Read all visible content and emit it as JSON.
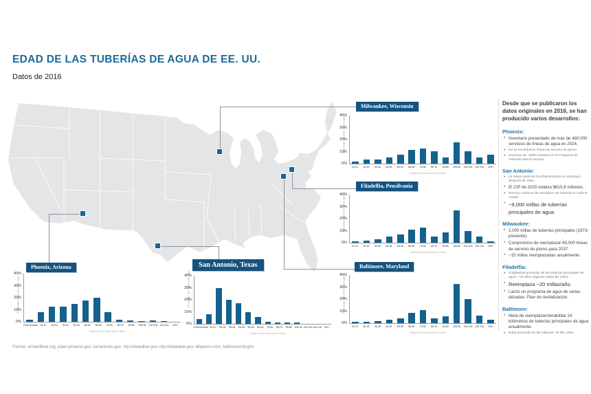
{
  "page": {
    "title": "EDAD DE LAS TUBERÍAS DE AGUA DE EE. UU.",
    "subtitle": "Datos de 2016",
    "source": "Fuente: circleofblue.org, pipes.phoenix.gov, sanantonio.gov, city.milwaukee.gov, city.milwaukee.gov, billypenn.com, baltimorecity.gov"
  },
  "colors": {
    "accent_blue": "#1c6a9e",
    "bar_blue": "#14618e",
    "badge_blue": "#15527e",
    "map_gray": "#e4e5e7",
    "marker_blue": "#186497"
  },
  "map": {
    "cities": [
      "Milwaukee",
      "Filadelfia",
      "Baltimore",
      "Phoenix",
      "San Antonio"
    ]
  },
  "chart_data": [
    {
      "id": "milwaukee",
      "type": "bar",
      "title": "Milwaukee, Wisconsin",
      "categories": [
        "16-10",
        "26-16",
        "36-26",
        "46-36",
        "56-46",
        "66-56",
        "76-66",
        "86-76",
        "96-86",
        "106-96",
        "116-106",
        "126-116",
        "126+"
      ],
      "values": [
        2,
        3.5,
        3.5,
        5,
        7.5,
        11.5,
        12.5,
        10.5,
        5,
        18,
        10.5,
        5,
        7.5
      ],
      "ylabel": "Porcentaje del sistema de agua",
      "xlabel": "Edad de las tuberías en años",
      "ylim": [
        0,
        40
      ],
      "yticks": [
        "40%",
        "30%",
        "20%",
        "10%",
        "0%"
      ]
    },
    {
      "id": "filadelfia",
      "type": "bar",
      "title": "Filadelfia, Pensilvania",
      "categories": [
        "16-10",
        "26-16",
        "36-26",
        "46-36",
        "56-46",
        "66-56",
        "76-66",
        "86-76",
        "96-86",
        "106-96",
        "116-106",
        "126-116",
        "126+"
      ],
      "values": [
        1,
        2,
        3,
        5,
        7,
        11,
        12.5,
        5,
        8.5,
        27,
        10,
        5,
        1
      ],
      "ylabel": "Porcentaje del sistema de agua",
      "xlabel": "Edad de las tuberías en años",
      "ylim": [
        0,
        40
      ],
      "yticks": [
        "40%",
        "30%",
        "20%",
        "10%",
        "0%"
      ]
    },
    {
      "id": "baltimore",
      "type": "bar",
      "title": "Baltimore, Maryland",
      "categories": [
        "16-10",
        "26-16",
        "36-26",
        "46-36",
        "56-46",
        "66-56",
        "76-66",
        "86-76",
        "96-86",
        "106-96",
        "116-106",
        "126-116",
        "126+"
      ],
      "values": [
        1,
        1,
        2,
        3,
        4,
        8.5,
        11,
        4,
        6,
        32.5,
        20,
        6.5,
        3
      ],
      "ylabel": "Porcentaje del sistema de agua",
      "xlabel": "Edad de las tuberías en años",
      "ylim": [
        0,
        40
      ],
      "yticks": [
        "40%",
        "30%",
        "20%",
        "10%",
        "0%"
      ]
    },
    {
      "id": "phoenix",
      "type": "bar",
      "title": "Phoenix, Arizona",
      "categories": [
        "Desconocido",
        "16-10",
        "26-16",
        "36-26",
        "46-36",
        "56-46",
        "66-56",
        "76-66",
        "86-76",
        "96-86",
        "106-96",
        "116-106",
        "126-116",
        "126+"
      ],
      "values": [
        2,
        8,
        12.5,
        12.5,
        15,
        18,
        20,
        8,
        2,
        1,
        0.5,
        1,
        0.5,
        0
      ],
      "ylabel": "Porcentaje del sistema de agua",
      "xlabel": "Edad de las tuberías en años",
      "ylim": [
        0,
        40
      ],
      "yticks": [
        "40%",
        "30%",
        "20%",
        "10%",
        "0%"
      ]
    },
    {
      "id": "san-antonio",
      "type": "bar",
      "title": "San Antonio, Texas",
      "categories": [
        "Desconocido",
        "16-10",
        "26-16",
        "36-26",
        "46-36",
        "56-46",
        "66-56",
        "76-66",
        "86-76",
        "96-86",
        "106-96",
        "116-106",
        "126-116",
        "126+"
      ],
      "values": [
        4,
        8,
        30,
        20,
        17,
        10,
        5.5,
        2,
        1,
        1,
        1,
        0,
        0,
        0
      ],
      "ylabel": "Porcentaje del sistema de agua",
      "xlabel": "Edad de las tuberías en años",
      "ylim": [
        0,
        40
      ],
      "yticks": [
        "40%",
        "30%",
        "20%",
        "10%",
        "0%"
      ]
    }
  ],
  "sidebar": {
    "intro": "Desde que se publicaron los datos originales en 2016, se han producido varios desarrollos:",
    "sections": [
      {
        "heading": "Phoenix:",
        "bullets": [
          {
            "size": "m",
            "text": "Inventario presentado de más de 480,000 servicios de líneas de agua en 2024."
          },
          {
            "size": "s",
            "text": "No se encontraron líneas de servicio de plomo."
          },
          {
            "size": "s",
            "text": "Inversión de ~$300 millones en el Programa de Tuberías para la Sequía."
          }
        ]
      },
      {
        "heading": "San Antonio:",
        "bullets": [
          {
            "size": "s",
            "text": "La mayor parte de la infraestructura se construyó después de 1960."
          },
          {
            "size": "m",
            "text": "El CIP de 2025 totaliza $615.8 millones."
          },
          {
            "size": "s",
            "text": "Servicio continuo de reemplazo de tuberías en toda la ciudad."
          },
          {
            "size": "l",
            "text": "~9,000 millas de tuberías principales de agua."
          }
        ]
      },
      {
        "heading": "Milwaukee:",
        "bullets": [
          {
            "size": "m",
            "text": "2,000 millas de tuberías principales (1873-presente)."
          },
          {
            "size": "m",
            "text": "Compromiso de reemplazar 65,000 líneas de servicio de plomo para 2037."
          },
          {
            "size": "m",
            "text": "~15 millas reemplazadas anualmente."
          }
        ]
      },
      {
        "heading": "Filadelfia:",
        "bullets": [
          {
            "size": "s",
            "text": "Antigüedad promedio de las tuberías principales de agua: ~78 años (algunas datan de 1824)."
          },
          {
            "size": "l",
            "text": "Reemplaza ~20 millas/año."
          },
          {
            "size": "m",
            "text": "Lanzó un programa de agua de varias décadas: Plan de revitalización."
          }
        ]
      },
      {
        "heading": "Baltimore:",
        "bullets": [
          {
            "size": "m",
            "text": "Meta de reemplazar/rehabilitar 24 kilómetros de tuberías principales de agua anualmente."
          },
          {
            "size": "s",
            "text": "Edad promedio de las tuberías: 75-80+ años."
          }
        ]
      }
    ]
  }
}
